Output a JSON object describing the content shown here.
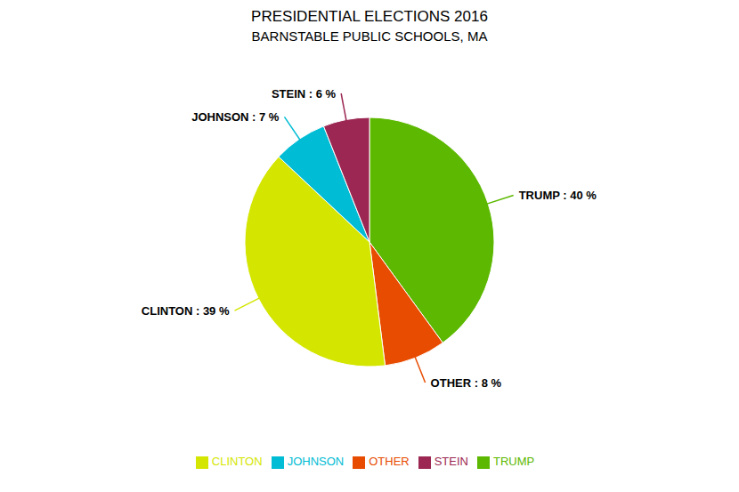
{
  "chart_data": {
    "type": "pie",
    "title": "PRESIDENTIAL ELECTIONS 2016",
    "subtitle": "BARNSTABLE PUBLIC SCHOOLS, MA",
    "categories": [
      "TRUMP",
      "OTHER",
      "CLINTON",
      "JOHNSON",
      "STEIN"
    ],
    "values": [
      40,
      8,
      39,
      7,
      6
    ],
    "value_labels": [
      "TRUMP : 40 %",
      "OTHER : 8 %",
      "CLINTON : 39 %",
      "JOHNSON : 7 %",
      "STEIN : 6 %"
    ],
    "colors": [
      "#5cb800",
      "#e84c00",
      "#d4e600",
      "#00bcd4",
      "#9c2752"
    ],
    "data_labels": true,
    "legend": "bottom"
  }
}
